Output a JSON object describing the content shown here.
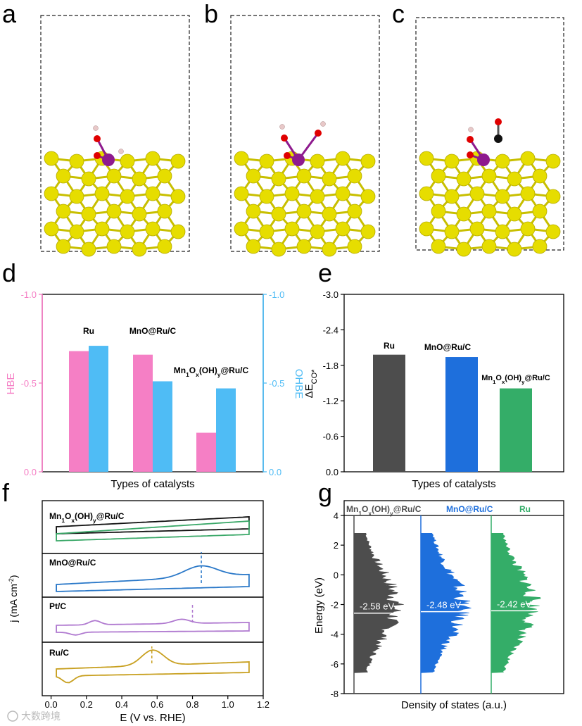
{
  "watermark": "大数跨境",
  "panels": {
    "a": {
      "label": "a",
      "adsorbates": [
        "H",
        "OH"
      ]
    },
    "b": {
      "label": "b",
      "adsorbates": [
        "OH",
        "OH"
      ]
    },
    "c": {
      "label": "c",
      "adsorbates": [
        "OH",
        "CO"
      ]
    }
  },
  "colors": {
    "slab": "#e6dd00",
    "mn": "#8e1a8e",
    "oxygen": "#e00000",
    "hydrogen": "#e8c8c8",
    "carbon": "#111111",
    "hbe": "#f57fc5",
    "ohbe": "#4fbcf5",
    "ru_bar": "#4d4d4d",
    "mno_bar": "#1e6fdc",
    "mn1_bar": "#34ad68",
    "cv_mn1_a": "#111111",
    "cv_mn1_b": "#3aa868",
    "cv_mno": "#2a78c8",
    "cv_pt": "#b07ad0",
    "cv_ru": "#c8a020"
  },
  "chart_data": [
    {
      "id": "d",
      "label": "d",
      "type": "bar",
      "categories": [
        "Ru",
        "MnO@Ru/C",
        "Mn1Ox(OH)y@Ru/C"
      ],
      "category_labels": [
        "Ru",
        "MnO@Ru/C",
        "Mn1Ox(OH)y@Ru/C"
      ],
      "series": [
        {
          "name": "HBE",
          "values": [
            -0.68,
            -0.66,
            -0.22
          ],
          "axis": "left"
        },
        {
          "name": "OHBE",
          "values": [
            -0.71,
            -0.51,
            -0.47
          ],
          "axis": "right"
        }
      ],
      "xlabel": "Types of catalysts",
      "ylabel_left": "HBE",
      "ylabel_right": "OHBE",
      "ylim_left": [
        0.0,
        -1.0
      ],
      "ylim_right": [
        0.0,
        -1.0
      ],
      "yticks": [
        0.0,
        -0.5,
        -1.0
      ],
      "ytick_labels": [
        "0.0",
        "-0.5",
        "-1.0"
      ],
      "ytick_labels_right": [
        "0.0",
        "-0.5",
        "-1.0"
      ]
    },
    {
      "id": "e",
      "label": "e",
      "type": "bar",
      "categories": [
        "Ru",
        "MnO@Ru/C",
        "Mn1Ox(OH)y@Ru/C"
      ],
      "values": [
        -1.98,
        -1.94,
        -1.41
      ],
      "xlabel": "Types of catalysts",
      "ylabel": "ΔECO*",
      "ylim": [
        0.0,
        -3.0
      ],
      "yticks": [
        0.0,
        -0.6,
        -1.2,
        -1.8,
        -2.4,
        -3.0
      ],
      "ytick_labels": [
        "0.0",
        "-0.6",
        "-1.2",
        "-1.8",
        "-2.4",
        "-3.0"
      ]
    },
    {
      "id": "f",
      "label": "f",
      "type": "line",
      "xlabel": "E (V vs. RHE)",
      "ylabel": "j (mA cm-2)",
      "xlim": [
        -0.05,
        1.2
      ],
      "xticks": [
        0.0,
        0.2,
        0.4,
        0.6,
        0.8,
        1.0,
        1.2
      ],
      "xtick_labels": [
        "0.0",
        "0.2",
        "0.4",
        "0.6",
        "0.8",
        "1.0",
        "1.2"
      ],
      "subplots": [
        {
          "name": "Mn1Ox(OH)y@Ru/C"
        },
        {
          "name": "MnO@Ru/C",
          "peak_marker": 0.85
        },
        {
          "name": "Pt/C",
          "peak_marker": 0.8
        },
        {
          "name": "Ru/C",
          "peak_marker": 0.57
        }
      ]
    },
    {
      "id": "g",
      "label": "g",
      "type": "area",
      "xlabel": "Density of states (a.u.)",
      "ylabel": "Energy (eV)",
      "ylim": [
        -8,
        4
      ],
      "yticks": [
        -8,
        -6,
        -4,
        -2,
        0,
        2,
        4
      ],
      "ytick_labels": [
        "-8",
        "-6",
        "-4",
        "-2",
        "0",
        "2",
        "4"
      ],
      "series": [
        {
          "name": "Mn1Ox(OH)y@Ru/C",
          "d_band_center": -2.58,
          "annotation": "-2.58 eV"
        },
        {
          "name": "MnO@Ru/C",
          "d_band_center": -2.48,
          "annotation": "-2.48 eV"
        },
        {
          "name": "Ru",
          "d_band_center": -2.42,
          "annotation": "-2.42 eV"
        }
      ]
    }
  ]
}
